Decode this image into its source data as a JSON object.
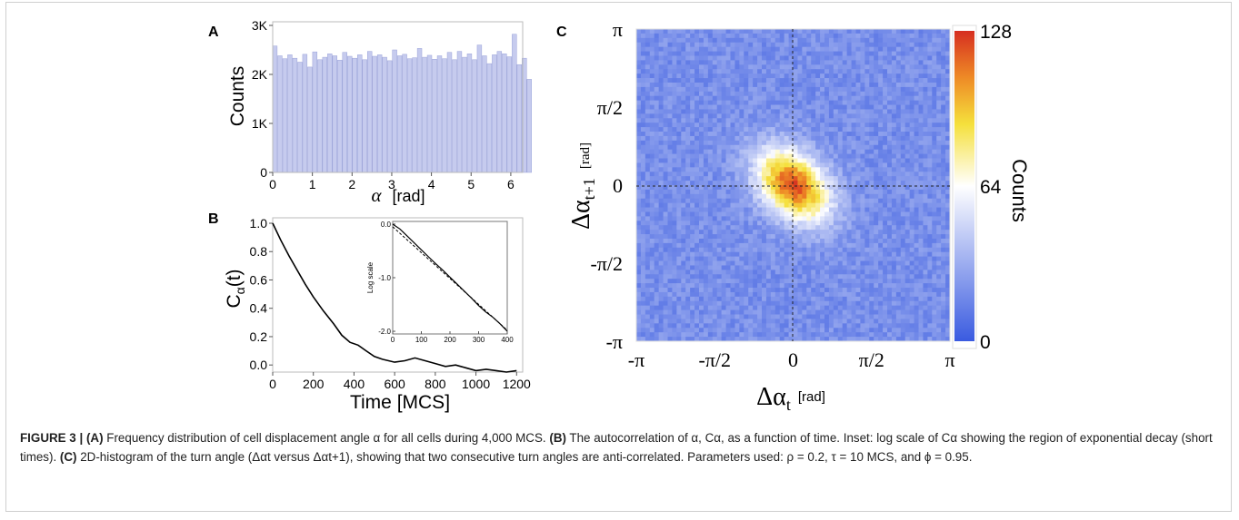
{
  "panels": {
    "a": {
      "label": "A"
    },
    "b": {
      "label": "B"
    },
    "c": {
      "label": "C"
    }
  },
  "chart_data": [
    {
      "id": "A",
      "type": "bar",
      "xlabel_symbol": "α",
      "xlabel_unit": "[rad]",
      "ylabel": "Counts",
      "x_ticks": [
        "0",
        "1",
        "2",
        "3",
        "4",
        "5",
        "6"
      ],
      "y_ticks": [
        "0",
        "1K",
        "2K",
        "3K"
      ],
      "xlim": [
        0,
        6.3
      ],
      "ylim": [
        0,
        3000
      ],
      "bin_width": 0.1257,
      "values": [
        2580,
        2380,
        2320,
        2400,
        2330,
        2250,
        2410,
        2150,
        2460,
        2300,
        2350,
        2420,
        2380,
        2290,
        2450,
        2370,
        2330,
        2400,
        2300,
        2470,
        2370,
        2400,
        2350,
        2280,
        2500,
        2380,
        2410,
        2320,
        2340,
        2530,
        2350,
        2390,
        2310,
        2380,
        2320,
        2450,
        2300,
        2470,
        2350,
        2420,
        2300,
        2600,
        2380,
        2220,
        2400,
        2470,
        2420,
        2360,
        2820,
        2200,
        2330,
        1900
      ],
      "bar_color": "#c6cbee"
    },
    {
      "id": "B",
      "type": "line",
      "xlabel": "Time [MCS]",
      "ylabel": "C",
      "ylabel_sub": "α",
      "ylabel_suffix": "(t)",
      "x_ticks": [
        "0",
        "200",
        "400",
        "600",
        "800",
        "1000",
        "1200"
      ],
      "y_ticks": [
        "0.0",
        "0.2",
        "0.4",
        "0.6",
        "0.8",
        "1.0"
      ],
      "xlim": [
        0,
        1230
      ],
      "ylim": [
        -0.05,
        1.0
      ],
      "x": [
        0,
        40,
        80,
        120,
        160,
        200,
        250,
        300,
        340,
        380,
        420,
        460,
        500,
        540,
        600,
        650,
        700,
        750,
        800,
        850,
        900,
        950,
        1000,
        1050,
        1100,
        1150,
        1200
      ],
      "y": [
        1.0,
        0.88,
        0.77,
        0.67,
        0.57,
        0.48,
        0.38,
        0.29,
        0.21,
        0.16,
        0.14,
        0.1,
        0.06,
        0.04,
        0.02,
        0.03,
        0.05,
        0.03,
        0.01,
        -0.01,
        0.0,
        -0.02,
        -0.04,
        -0.03,
        -0.04,
        -0.05,
        -0.04
      ],
      "inset": {
        "ylabel": "Log scale",
        "x_ticks": [
          "0",
          "100",
          "200",
          "300",
          "400"
        ],
        "y_ticks": [
          "0.0",
          "-1.0",
          "-2.0"
        ],
        "xlim": [
          0,
          400
        ],
        "ylim": [
          -2.05,
          0.05
        ],
        "x": [
          0,
          25,
          50,
          75,
          100,
          125,
          150,
          175,
          200,
          225,
          250,
          275,
          300,
          325,
          350,
          375,
          400
        ],
        "y": [
          0.0,
          -0.09,
          -0.22,
          -0.35,
          -0.48,
          -0.61,
          -0.74,
          -0.86,
          -0.99,
          -1.12,
          -1.25,
          -1.38,
          -1.52,
          -1.64,
          -1.74,
          -1.86,
          -2.0
        ],
        "fit_x": [
          0,
          400
        ],
        "fit_y": [
          -0.05,
          -1.98
        ]
      }
    },
    {
      "id": "C",
      "type": "heatmap",
      "xlabel": "Δα",
      "xlabel_sub": "t",
      "xlabel_unit": "[rad]",
      "ylabel": "Δα",
      "ylabel_sub": "t+1",
      "ylabel_unit": "[rad]",
      "x_ticks": [
        "-π",
        "-π/2",
        "0",
        "π/2",
        "π"
      ],
      "y_ticks": [
        "π",
        "π/2",
        "0",
        "-π/2",
        "-π"
      ],
      "colorbar_label": "Counts",
      "colorbar_ticks": [
        "128",
        "64",
        "0"
      ],
      "colorbar_range": [
        0,
        128
      ],
      "colors": [
        "#3a5be0",
        "#ffffff",
        "#f5e03c",
        "#ee8a26",
        "#d62e20"
      ]
    }
  ],
  "caption": {
    "figure_label": "FIGURE 3 |",
    "a_label": "(A)",
    "a_text": " Frequency distribution of cell displacement angle α for all cells during 4,000 MCS. ",
    "b_label": "(B)",
    "b_text": " The autocorrelation of α, Cα, as a function of time. Inset: log scale of Cα showing the region of exponential decay (short times). ",
    "c_label": "(C)",
    "c_text": " 2D-histogram of the turn angle (Δαt versus Δαt+1), showing that two consecutive turn angles are anti-correlated. Parameters used: ρ = 0.2, τ = 10 MCS, and ϕ = 0.95."
  }
}
